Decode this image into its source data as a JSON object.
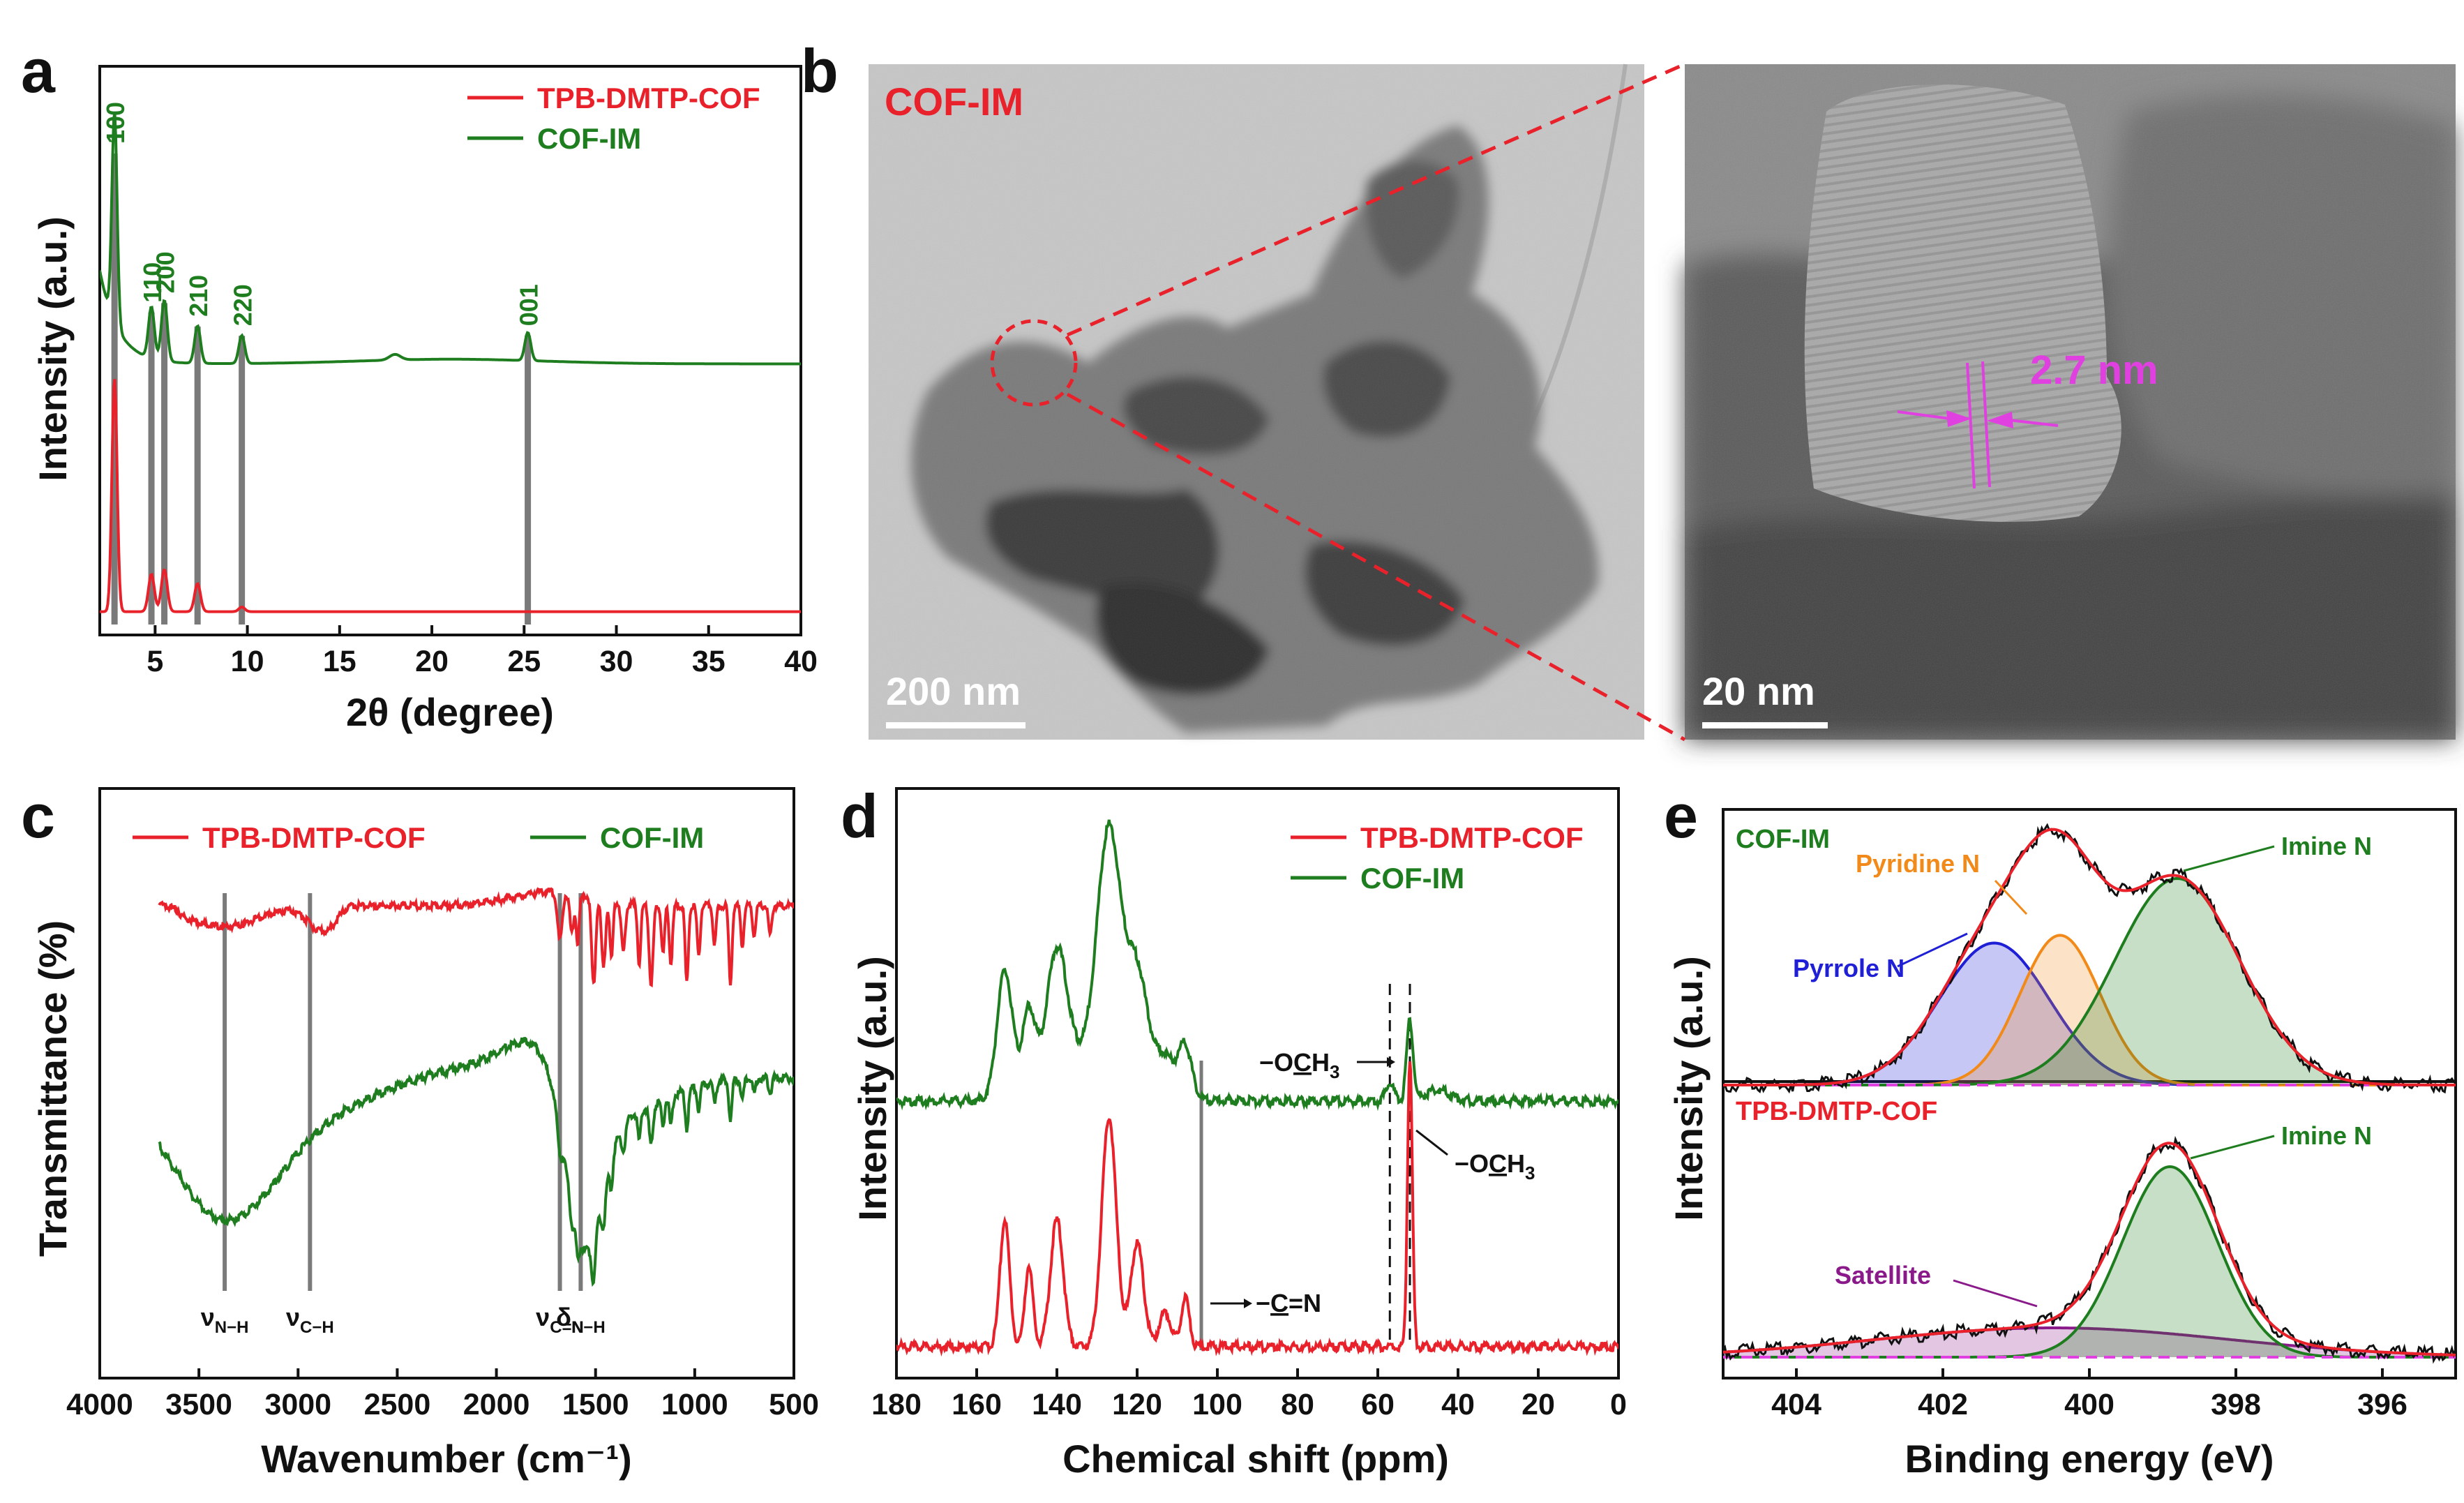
{
  "figure": {
    "colors": {
      "red": "#e8212b",
      "green": "#1e7d1e",
      "gray": "#7a7a7a",
      "magenta": "#e040e0",
      "blue": "#1f1fd6",
      "orange": "#f28a1a",
      "purple": "#8a1a8a"
    },
    "panel_labels": {
      "a": "a",
      "b": "b",
      "c": "c",
      "d": "d",
      "e": "e"
    }
  },
  "chart_data": [
    {
      "panel": "a",
      "type": "line",
      "xlabel": "2θ (degree)",
      "ylabel": "Intensity (a.u.)",
      "xlim": [
        2,
        40
      ],
      "xticks": [
        5,
        10,
        15,
        20,
        25,
        30,
        35,
        40
      ],
      "legend": [
        "TPB-DMTP-COF",
        "COF-IM"
      ],
      "legend_loc": "top-right",
      "peaks": [
        {
          "label": "100",
          "x": 2.8
        },
        {
          "label": "110",
          "x": 4.8
        },
        {
          "label": "200",
          "x": 5.5
        },
        {
          "label": "210",
          "x": 7.3
        },
        {
          "label": "220",
          "x": 9.7
        },
        {
          "label": "001",
          "x": 25.2
        }
      ],
      "series": [
        {
          "name": "COF-IM",
          "baseline": 0.55,
          "peak_heights": [
            1.0,
            0.66,
            0.68,
            0.63,
            0.61,
            0.61
          ]
        },
        {
          "name": "TPB-DMTP-COF",
          "baseline": 0.02,
          "peak_heights": [
            0.52,
            0.1,
            0.11,
            0.08,
            0.03,
            0.02
          ]
        }
      ]
    },
    {
      "panel": "b",
      "type": "image",
      "label": "COF-IM",
      "scale_left": "200 nm",
      "scale_right": "20 nm",
      "lattice": "2.7 nm"
    },
    {
      "panel": "c",
      "type": "line",
      "xlabel": "Wavenumber (cm⁻¹)",
      "ylabel": "Transmittance (%)",
      "xlim": [
        4000,
        500
      ],
      "xticks": [
        4000,
        3500,
        3000,
        2500,
        2000,
        1500,
        1000,
        500
      ],
      "legend": [
        "TPB-DMTP-COF",
        "COF-IM"
      ],
      "legend_loc": "top",
      "markers": [
        {
          "x": 3370,
          "label": "ν",
          "sub": "N−H"
        },
        {
          "x": 2940,
          "label": "ν",
          "sub": "C−H"
        },
        {
          "x": 1680,
          "label": "ν",
          "sub": "C=N"
        },
        {
          "x": 1575,
          "label": "δ",
          "sub": "N−H"
        }
      ]
    },
    {
      "panel": "d",
      "type": "line",
      "xlabel": "Chemical shift (ppm)",
      "ylabel": "Intensity (a.u.)",
      "xlim": [
        180,
        0
      ],
      "xticks": [
        180,
        160,
        140,
        120,
        100,
        80,
        60,
        40,
        20,
        0
      ],
      "legend": [
        "TPB-DMTP-COF",
        "COF-IM"
      ],
      "legend_loc": "top-right",
      "peaks_ppm": [
        153,
        147,
        140,
        127,
        120,
        108,
        52
      ],
      "annotations": [
        {
          "pre": "−O",
          "u": "C",
          "post": "H",
          "sub": "3",
          "series": "COF-IM"
        },
        {
          "pre": "−O",
          "u": "C",
          "post": "H",
          "sub": "3",
          "series": "TPB-DMTP-COF"
        },
        {
          "pre": "−",
          "u": "C",
          "post": "=N",
          "sub": "",
          "series": "TPB-DMTP-COF"
        }
      ]
    },
    {
      "panel": "e",
      "type": "line",
      "xlabel": "Binding energy (eV)",
      "ylabel": "Intensity (a.u.)",
      "xlim": [
        405,
        395
      ],
      "xticks": [
        404,
        402,
        400,
        398,
        396
      ],
      "subplots": [
        {
          "name": "COF-IM",
          "components": [
            {
              "name": "Pyrrole N",
              "center": 401.3,
              "height": 0.55
            },
            {
              "name": "Pyridine N",
              "center": 400.4,
              "height": 0.58
            },
            {
              "name": "Imine N",
              "center": 398.8,
              "height": 0.8
            }
          ]
        },
        {
          "name": "TPB-DMTP-COF",
          "components": [
            {
              "name": "Satellite",
              "center": 400.5,
              "height": 0.12
            },
            {
              "name": "Imine N",
              "center": 398.9,
              "height": 0.78
            }
          ]
        }
      ]
    }
  ]
}
